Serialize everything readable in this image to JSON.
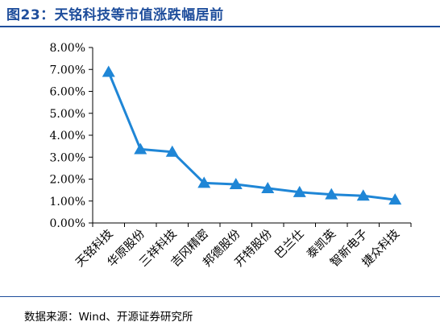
{
  "figure": {
    "title": "图23：天铭科技等市值涨跌幅居前",
    "source": "数据来源：Wind、开源证券研究所"
  },
  "colors": {
    "title": "#1f4e9c",
    "series": "#1f86d6",
    "axis": "#000000"
  },
  "chart_data": {
    "type": "line",
    "categories": [
      "天铭科技",
      "华原股份",
      "三祥科技",
      "吉冈精密",
      "邦德股份",
      "开特股份",
      "巴兰仕",
      "泰凯英",
      "智新电子",
      "捷众科技"
    ],
    "series": [
      {
        "values": [
          6.88,
          3.36,
          3.24,
          1.82,
          1.76,
          1.58,
          1.4,
          1.3,
          1.24,
          1.06
        ]
      }
    ],
    "ylim": [
      0,
      8
    ],
    "yticks": [
      "0.00%",
      "1.00%",
      "2.00%",
      "3.00%",
      "4.00%",
      "5.00%",
      "6.00%",
      "7.00%",
      "8.00%"
    ],
    "marker": "triangle",
    "grid": false,
    "legend": "none"
  }
}
